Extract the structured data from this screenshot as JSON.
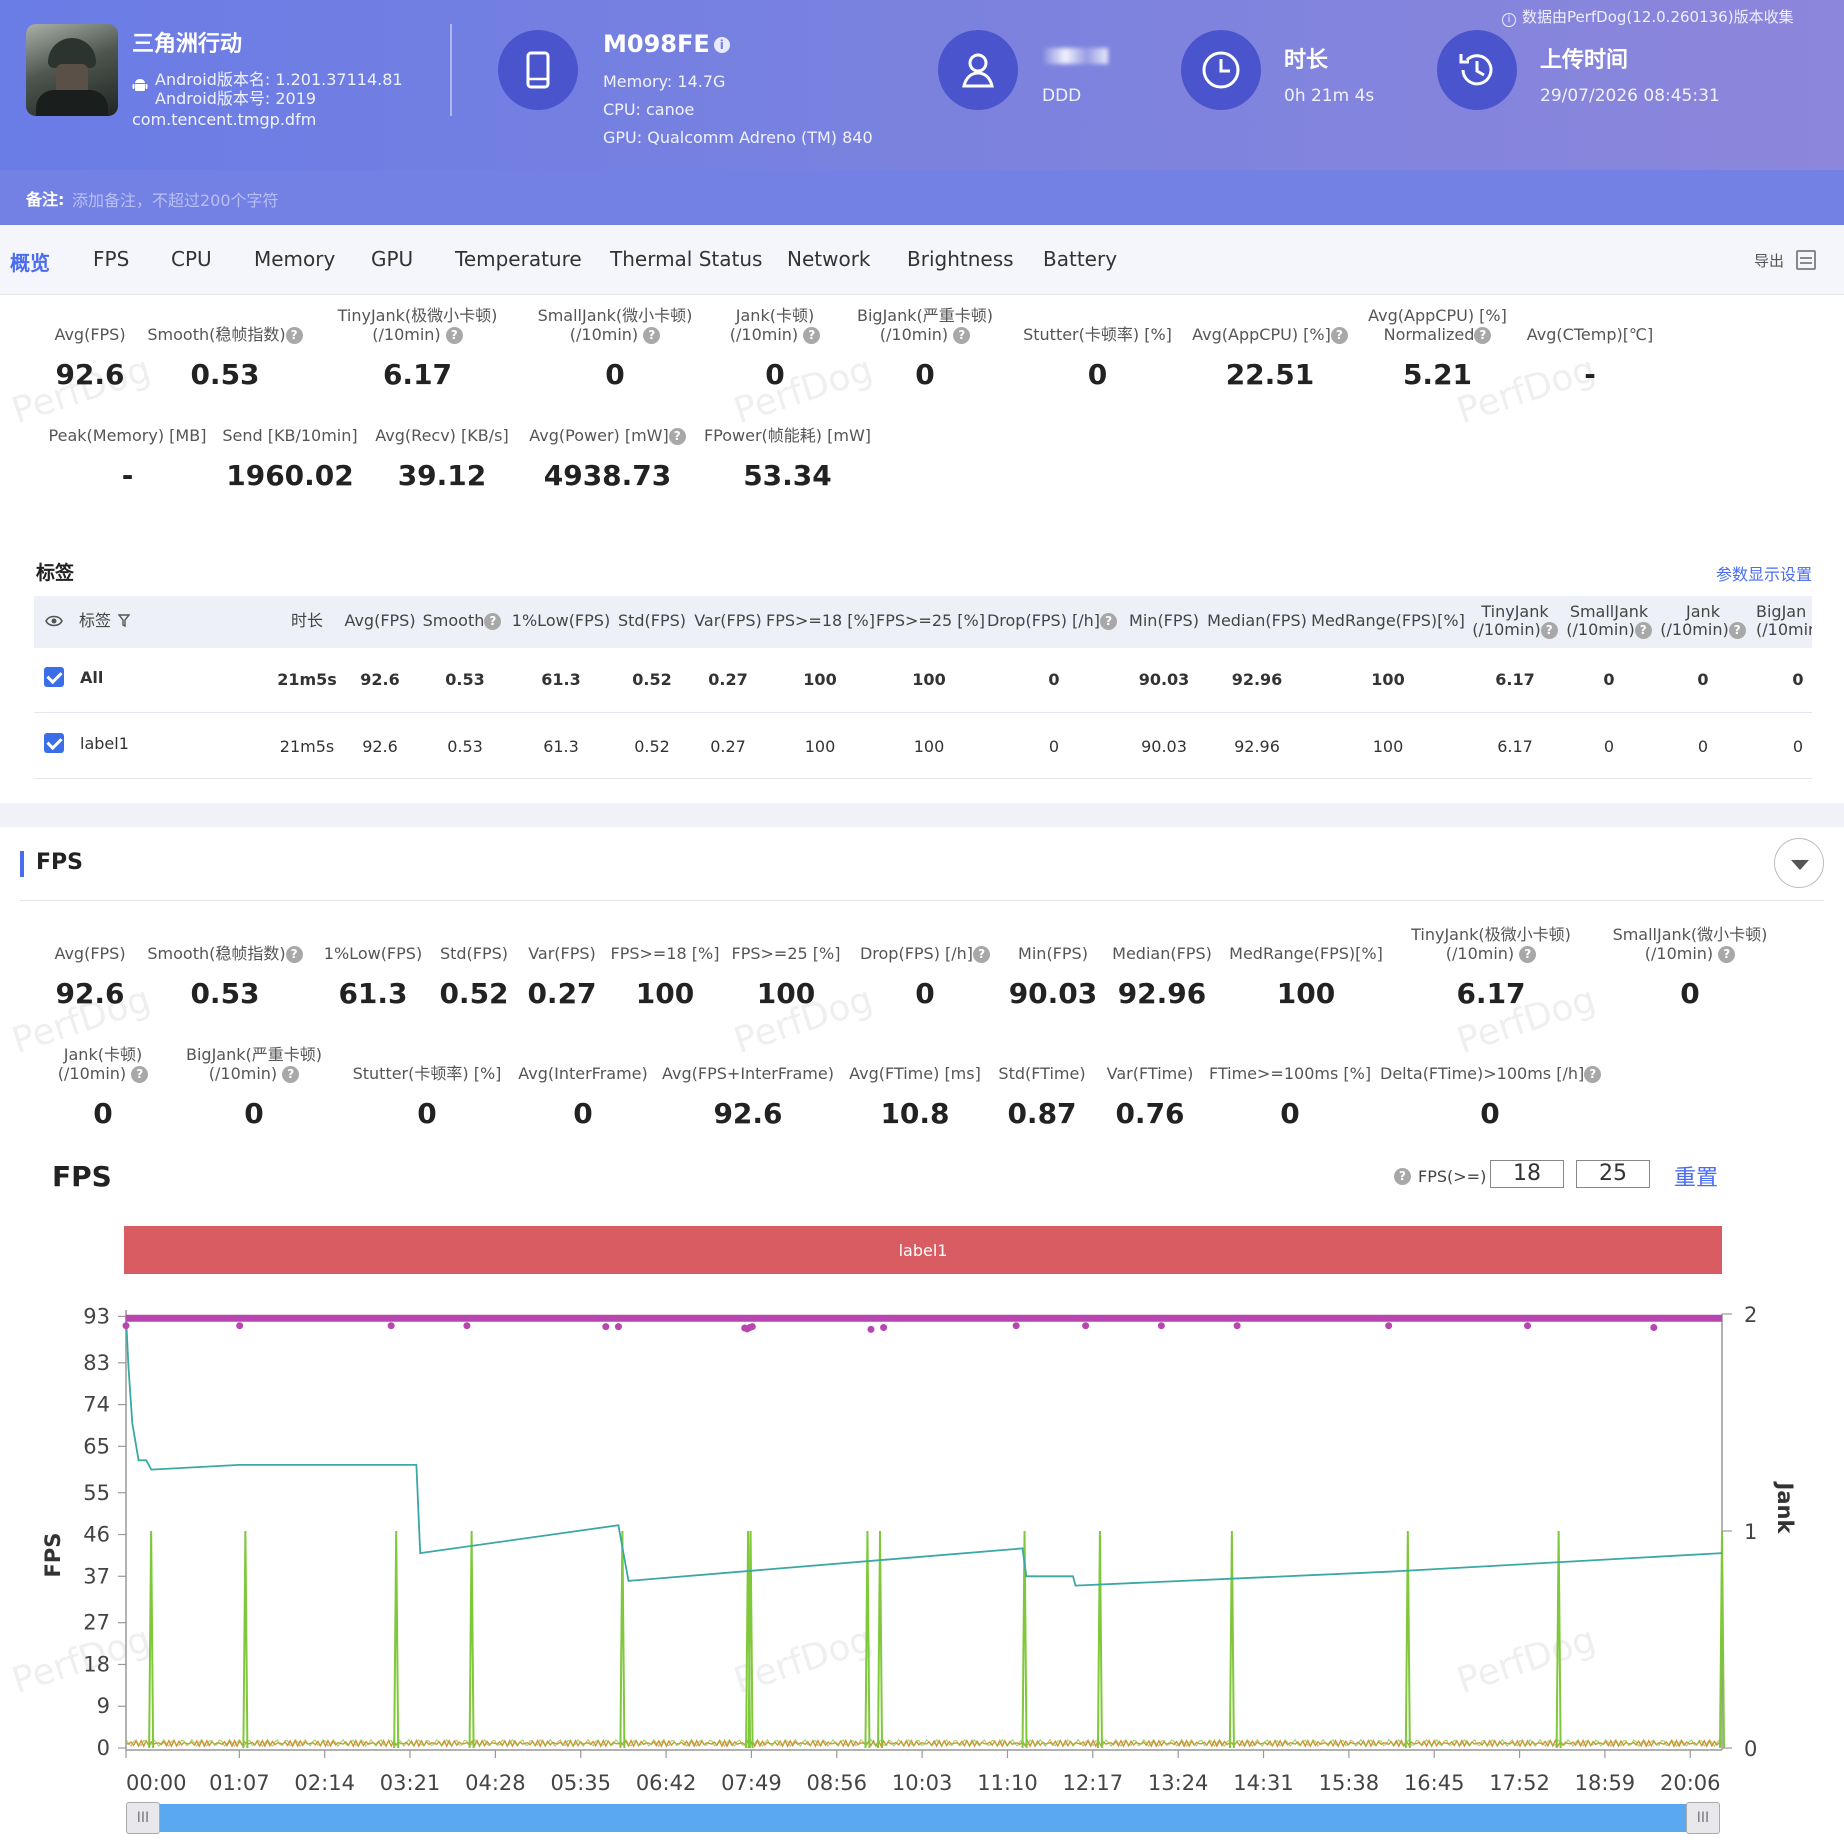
{
  "header": {
    "app_name": "三角洲行动",
    "android_version_name": "Android版本名: 1.201.37114.81",
    "android_version_code": "Android版本号: 2019",
    "package": "com.tencent.tmgp.dfm",
    "device_name": "M098FE",
    "memory": "Memory: 14.7G",
    "cpu": "CPU: canoe",
    "gpu": "GPU: Qualcomm Adreno (TM) 840",
    "user_label": "DDD",
    "duration_title": "时长",
    "duration_value": "0h 21m 4s",
    "upload_title": "上传时间",
    "upload_value": "29/07/2026 08:45:31",
    "source_note": "数据由PerfDog(12.0.260136)版本收集",
    "info_icon": "i-icon"
  },
  "note": {
    "label": "备注:",
    "placeholder": "添加备注，不超过200个字符"
  },
  "tabs": [
    "概览",
    "FPS",
    "CPU",
    "Memory",
    "GPU",
    "Temperature",
    "Thermal Status",
    "Network",
    "Brightness",
    "Battery"
  ],
  "export_label": "导出",
  "overview": {
    "row1": [
      {
        "label": "Avg(FPS)",
        "value": "92.6"
      },
      {
        "label": "Smooth(稳帧指数)",
        "value": "0.53"
      },
      {
        "label": "TinyJank(极微小卡顿)",
        "label2": "(/10min)",
        "value": "6.17"
      },
      {
        "label": "SmallJank(微小卡顿)",
        "label2": "(/10min)",
        "value": "0"
      },
      {
        "label": "Jank(卡顿)",
        "label2": "(/10min)",
        "value": "0"
      },
      {
        "label": "BigJank(严重卡顿)",
        "label2": "(/10min)",
        "value": "0"
      },
      {
        "label": "Stutter(卡顿率) [%]",
        "value": "0"
      },
      {
        "label": "Avg(AppCPU) [%]",
        "value": "22.51"
      },
      {
        "label": "Avg(AppCPU) [%]",
        "label2": "Normalized",
        "value": "5.21"
      },
      {
        "label": "Avg(CTemp)[℃]",
        "value": "-"
      }
    ],
    "row2": [
      {
        "label": "Peak(Memory) [MB]",
        "value": "-"
      },
      {
        "label": "Send [KB/10min]",
        "value": "1960.02"
      },
      {
        "label": "Avg(Recv) [KB/s]",
        "value": "39.12"
      },
      {
        "label": "Avg(Power) [mW]",
        "value": "4938.73"
      },
      {
        "label": "FPower(帧能耗) [mW]",
        "value": "53.34"
      }
    ]
  },
  "watermark": "PerfDog",
  "labels_section": {
    "title": "标签",
    "settings_link": "参数显示设置",
    "columns": [
      "标签",
      "时长",
      "Avg(FPS)",
      "Smooth",
      "1%Low(FPS)",
      "Std(FPS)",
      "Var(FPS)",
      "FPS>=18 [%]",
      "FPS>=25 [%]",
      "Drop(FPS) [/h]",
      "Min(FPS)",
      "Median(FPS)",
      "MedRange(FPS)[%]",
      "TinyJank",
      "SmallJank",
      "Jank",
      "BigJan"
    ],
    "column_sub": "(/10min)",
    "column_sub_cut": "(/10min",
    "rows": [
      {
        "name": "All",
        "cells": [
          "21m5s",
          "92.6",
          "0.53",
          "61.3",
          "0.52",
          "0.27",
          "100",
          "100",
          "0",
          "90.03",
          "92.96",
          "100",
          "6.17",
          "0",
          "0",
          "0"
        ]
      },
      {
        "name": "label1",
        "cells": [
          "21m5s",
          "92.6",
          "0.53",
          "61.3",
          "0.52",
          "0.27",
          "100",
          "100",
          "0",
          "90.03",
          "92.96",
          "100",
          "6.17",
          "0",
          "0",
          "0"
        ]
      }
    ]
  },
  "fps_section": {
    "title": "FPS",
    "row1": [
      {
        "label": "Avg(FPS)",
        "value": "92.6"
      },
      {
        "label": "Smooth(稳帧指数)",
        "value": "0.53"
      },
      {
        "label": "1%Low(FPS)",
        "value": "61.3"
      },
      {
        "label": "Std(FPS)",
        "value": "0.52"
      },
      {
        "label": "Var(FPS)",
        "value": "0.27"
      },
      {
        "label": "FPS>=18 [%]",
        "value": "100"
      },
      {
        "label": "FPS>=25 [%]",
        "value": "100"
      },
      {
        "label": "Drop(FPS) [/h]",
        "value": "0"
      },
      {
        "label": "Min(FPS)",
        "value": "90.03"
      },
      {
        "label": "Median(FPS)",
        "value": "92.96"
      },
      {
        "label": "MedRange(FPS)[%]",
        "value": "100"
      },
      {
        "label": "TinyJank(极微小卡顿)",
        "label2": "(/10min)",
        "value": "6.17"
      },
      {
        "label": "SmallJank(微小卡顿)",
        "label2": "(/10min)",
        "value": "0"
      }
    ],
    "row2": [
      {
        "label": "Jank(卡顿)",
        "label2": "(/10min)",
        "value": "0"
      },
      {
        "label": "BigJank(严重卡顿)",
        "label2": "(/10min)",
        "value": "0"
      },
      {
        "label": "Stutter(卡顿率) [%]",
        "value": "0"
      },
      {
        "label": "Avg(InterFrame)",
        "value": "0"
      },
      {
        "label": "Avg(FPS+InterFrame)",
        "value": "92.6"
      },
      {
        "label": "Avg(FTime) [ms]",
        "value": "10.8"
      },
      {
        "label": "Std(FTime)",
        "value": "0.87"
      },
      {
        "label": "Var(FTime)",
        "value": "0.76"
      },
      {
        "label": "FTime>=100ms [%]",
        "value": "0"
      },
      {
        "label": "Delta(FTime)>100ms [/h]",
        "value": "0"
      }
    ],
    "chart_title": "FPS",
    "threshold_label": "FPS(>=)",
    "threshold1": "18",
    "threshold2": "25",
    "reset_label": "重置",
    "label_band": "label1",
    "scroll_grip": "III"
  },
  "chart_data": {
    "type": "line",
    "ylabel": "FPS",
    "y2label": "Jank",
    "yticks": [
      "0",
      "9",
      "18",
      "27",
      "37",
      "46",
      "55",
      "65",
      "74",
      "83",
      "93"
    ],
    "y2ticks": [
      "0",
      "1",
      "2"
    ],
    "xticks": [
      "00:00",
      "01:07",
      "02:14",
      "03:21",
      "04:28",
      "05:35",
      "06:42",
      "07:49",
      "08:56",
      "10:03",
      "11:10",
      "12:17",
      "13:24",
      "14:31",
      "15:38",
      "16:45",
      "17:52",
      "18:59",
      "20:06"
    ],
    "ylim": [
      0,
      103
    ],
    "y2lim": [
      0,
      2
    ],
    "xlim_seconds": [
      0,
      1264
    ],
    "colors": {
      "fps": "#b845b0",
      "teal": "#3aa8a4",
      "jank": "#7ec83a",
      "low": "#e08a3a"
    },
    "fps_series": {
      "name": "FPS",
      "value": 92.6,
      "dips": [
        [
          0,
          91
        ],
        [
          90,
          91
        ],
        [
          210,
          91
        ],
        [
          270,
          91
        ],
        [
          380,
          90.8
        ],
        [
          390,
          90.8
        ],
        [
          490,
          90.5
        ],
        [
          492,
          90.3
        ],
        [
          494,
          90.6
        ],
        [
          496,
          90.8
        ],
        [
          590,
          90.2
        ],
        [
          600,
          90.6
        ],
        [
          705,
          91
        ],
        [
          760,
          91
        ],
        [
          820,
          91
        ],
        [
          880,
          91
        ],
        [
          1000,
          91
        ],
        [
          1110,
          91
        ],
        [
          1210,
          90.6
        ]
      ]
    },
    "teal_series": [
      [
        0,
        93
      ],
      [
        2,
        82
      ],
      [
        5,
        70
      ],
      [
        10,
        62
      ],
      [
        16,
        62
      ],
      [
        20,
        60
      ],
      [
        90,
        61
      ],
      [
        230,
        61
      ],
      [
        233,
        42
      ],
      [
        390,
        48
      ],
      [
        398,
        36
      ],
      [
        710,
        43
      ],
      [
        713,
        37
      ],
      [
        750,
        37
      ],
      [
        752,
        35
      ],
      [
        1000,
        38
      ],
      [
        1264,
        42
      ]
    ],
    "jank_spikes": [
      20,
      95,
      215,
      275,
      395,
      495,
      497,
      590,
      600,
      715,
      775,
      880,
      1020,
      1140,
      1270
    ]
  }
}
